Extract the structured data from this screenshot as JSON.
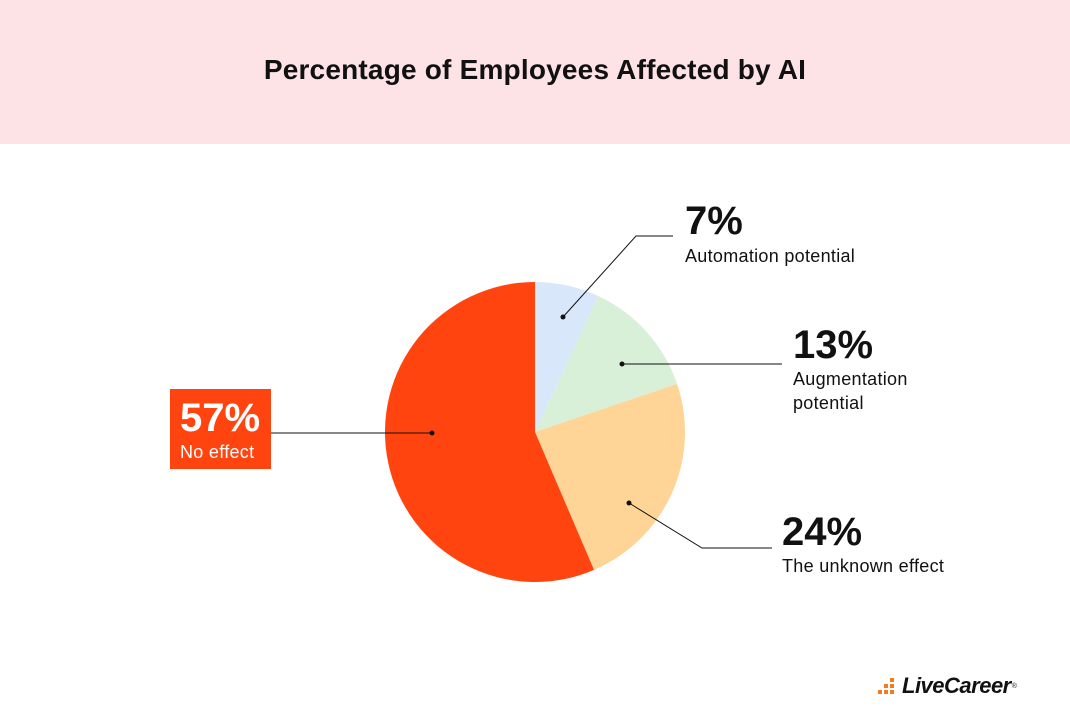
{
  "header": {
    "title": "Percentage of Employees Affected by AI"
  },
  "chart_data": {
    "type": "pie",
    "title": "Percentage of Employees Affected by AI",
    "start": "12 o'clock, clockwise",
    "slices": [
      {
        "label": "Automation potential",
        "value": 7,
        "pct": "7%",
        "color": "#d9e7fb",
        "highlight": false
      },
      {
        "label": "Augmentation potential",
        "value": 13,
        "pct": "13%",
        "color": "#d7f0d7",
        "highlight": false
      },
      {
        "label": "The unknown effect",
        "value": 24,
        "pct": "24%",
        "color": "#fed597",
        "highlight": false
      },
      {
        "label": "No effect",
        "value": 57,
        "pct": "57%",
        "color": "#ff4410",
        "highlight": true
      }
    ]
  },
  "labels": {
    "automation": {
      "pct": "7%",
      "line1": "Automation potential"
    },
    "augmentation": {
      "pct": "13%",
      "line1": "Augmentation",
      "line2": "potential"
    },
    "unknown": {
      "pct": "24%",
      "line1": "The unknown effect"
    },
    "noeffect": {
      "pct": "57%",
      "line1": "No effect"
    }
  },
  "brand": {
    "logo_text": "LiveCareer",
    "accent": "#f47a1f"
  }
}
